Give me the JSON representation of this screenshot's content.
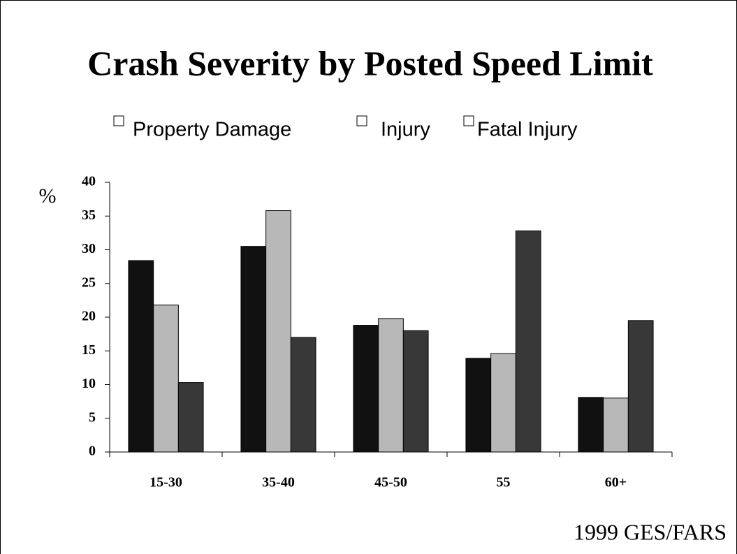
{
  "chart_data": {
    "type": "bar",
    "title": "Crash Severity by Posted Speed Limit",
    "ylabel": "%",
    "source": "1999 GES/FARS",
    "categories": [
      "15-30",
      "35-40",
      "45-50",
      "55",
      "60+"
    ],
    "series": [
      {
        "name": "Property Damage",
        "color": "#111111",
        "values": [
          28.4,
          30.5,
          18.8,
          13.9,
          8.1
        ]
      },
      {
        "name": "Injury",
        "color": "#b8b8b8",
        "values": [
          21.8,
          35.8,
          19.8,
          14.6,
          8.0
        ]
      },
      {
        "name": "Fatal Injury",
        "color": "#383838",
        "values": [
          10.3,
          17.0,
          18.0,
          32.8,
          19.5
        ]
      }
    ],
    "ylim": [
      0,
      40
    ],
    "yticks": [
      0,
      5,
      10,
      15,
      20,
      25,
      30,
      35,
      40
    ]
  }
}
